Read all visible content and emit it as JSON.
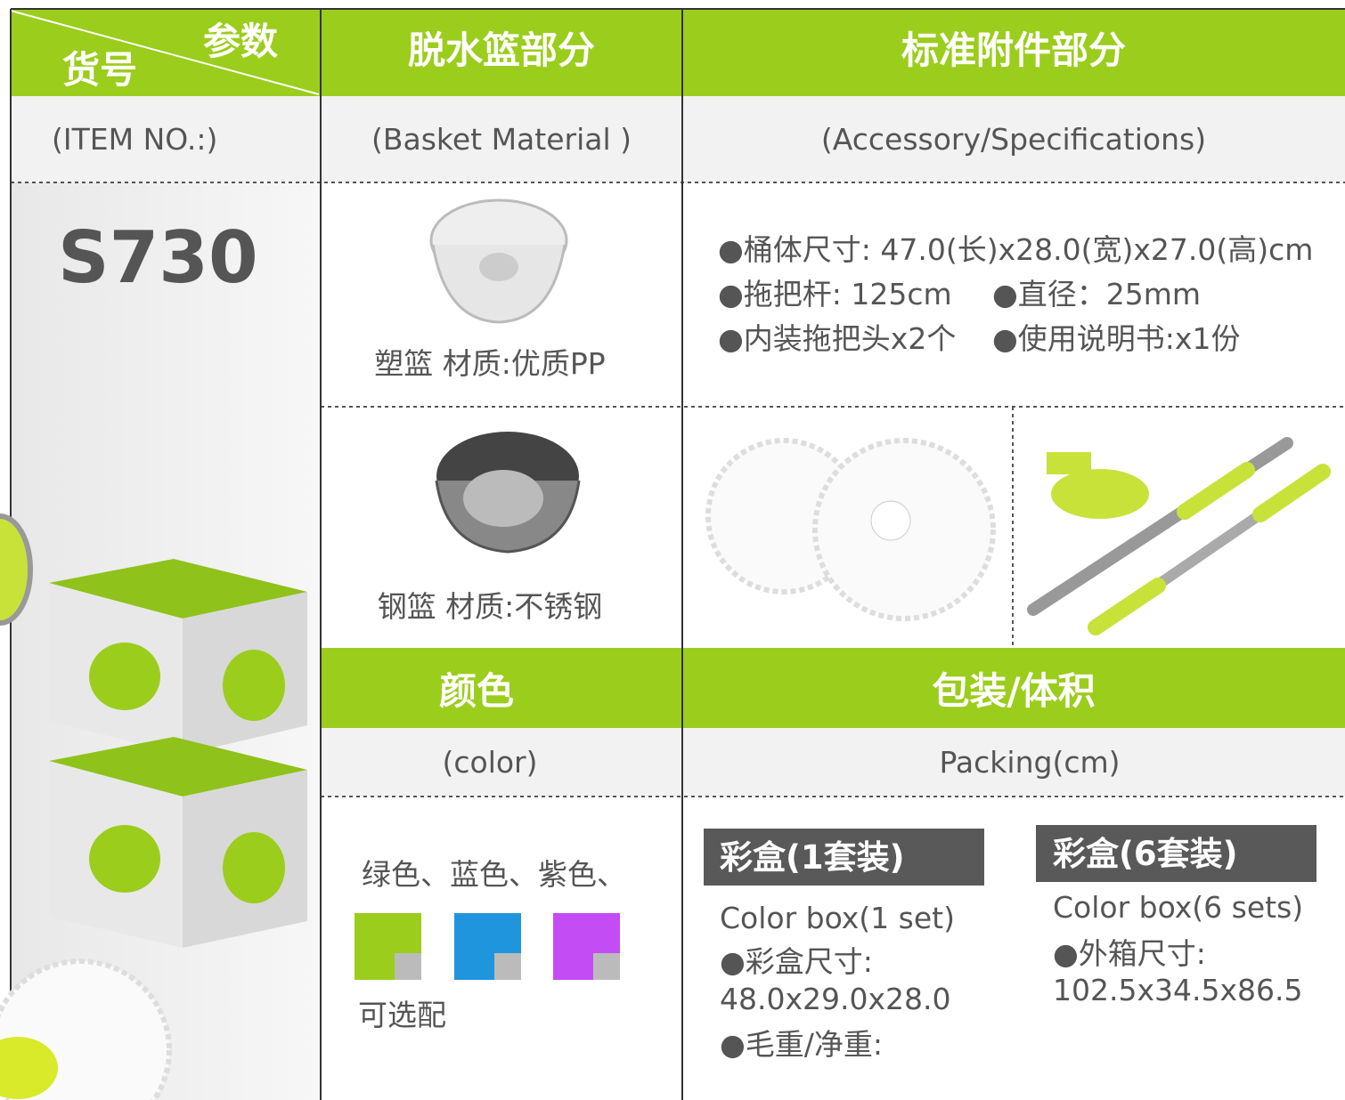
{
  "header": {
    "param": "参数",
    "item": "货号",
    "basket_title": "脱水篮部分",
    "accessory_title": "标准附件部分"
  },
  "subheader": {
    "item_no": "(ITEM NO.:)",
    "basket": "(Basket Material )",
    "accessory": "(Accessory/Specifications)"
  },
  "model": "S730",
  "baskets": [
    "塑篮 材质:优质PP",
    "钢篮 材质:不锈钢"
  ],
  "accessories": [
    "●桶体尺寸: 47.0(长)x28.0(宽)x27.0(高)cm",
    "●拖把杆: 125cm",
    "●直径：25mm",
    "●内装拖把头x2个",
    "●使用说明书:x1份"
  ],
  "color_section": {
    "title": "颜色",
    "subtitle": "(color)",
    "options": "绿色、蓝色、紫色、",
    "swatches": [
      "#9bcd1c",
      "#1f95dd",
      "#c34cf5"
    ],
    "note": "可选配"
  },
  "packing": {
    "title": "包装/体积",
    "subtitle": "Packing(cm)",
    "boxes": [
      {
        "title": "彩盒(1套装)",
        "subtitle": "Color box(1 set)",
        "lines": [
          "●彩盒尺寸:",
          "48.0x29.0x28.0",
          "●毛重/净重:"
        ]
      },
      {
        "title": "彩盒(6套装)",
        "subtitle": "Color box(6 sets)",
        "lines": [
          "●外箱尺寸:",
          "102.5x34.5x86.5"
        ]
      }
    ]
  }
}
